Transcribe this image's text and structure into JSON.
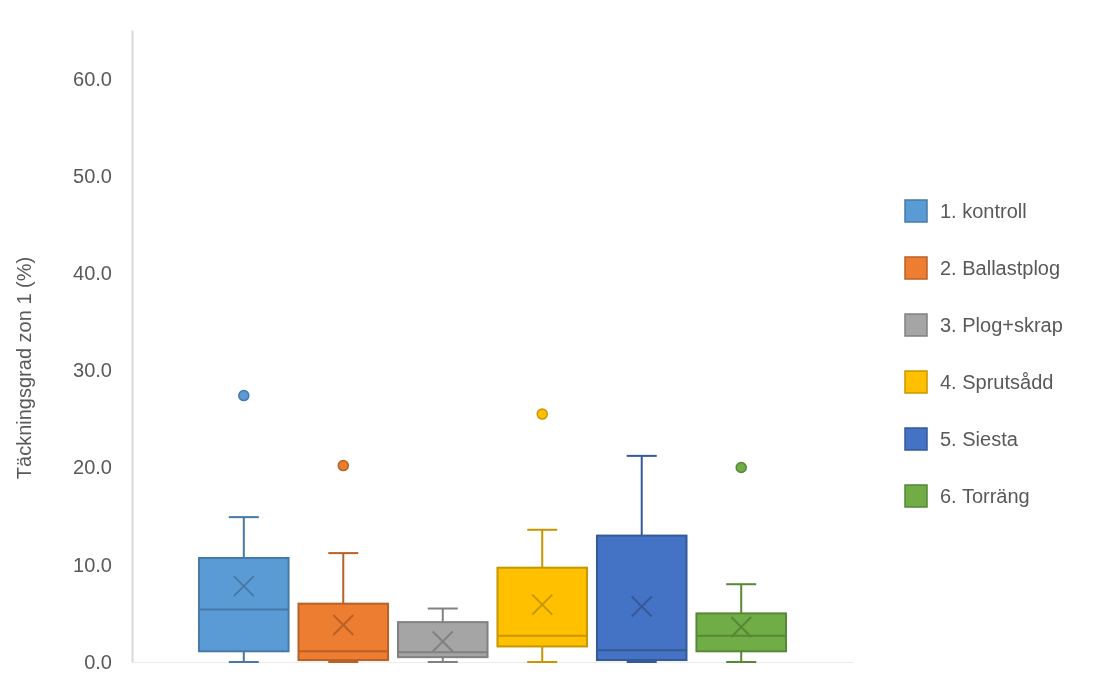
{
  "chart_data": {
    "type": "box",
    "ylabel": "Täckningsgrad zon 1 (%)",
    "categories": [
      null
    ],
    "series": [
      {
        "name": "1. kontroll",
        "color": "#5b9bd5",
        "boxes": [
          {
            "low": 0,
            "q1": 1.1,
            "median": 5.4,
            "q3": 10.7,
            "high": 14.9,
            "mean": 7.8,
            "outliers": [
              27.4
            ]
          }
        ]
      },
      {
        "name": "2. Ballastplog",
        "color": "#ed7d31",
        "boxes": [
          {
            "low": 0,
            "q1": 0.2,
            "median": 1.1,
            "q3": 6.0,
            "high": 11.2,
            "mean": 3.8,
            "outliers": [
              20.2
            ]
          }
        ]
      },
      {
        "name": "3. Plog+skrap",
        "color": "#a5a5a5",
        "boxes": [
          {
            "low": 0,
            "q1": 0.5,
            "median": 1.0,
            "q3": 4.1,
            "high": 5.5,
            "mean": 2.1
          }
        ]
      },
      {
        "name": "4. Sprutsådd",
        "color": "#ffc000",
        "boxes": [
          {
            "low": 0,
            "q1": 1.6,
            "median": 2.7,
            "q3": 9.7,
            "high": 13.6,
            "mean": 5.9,
            "outliers": [
              25.5
            ]
          }
        ]
      },
      {
        "name": "5. Siesta",
        "color": "#4472c4",
        "boxes": [
          {
            "low": 0,
            "q1": 0.2,
            "median": 1.2,
            "q3": 13.0,
            "high": 21.2,
            "mean": 5.7
          }
        ]
      },
      {
        "name": "6. Torräng",
        "color": "#70ad47",
        "boxes": [
          {
            "low": 0,
            "q1": 1.1,
            "median": 2.7,
            "q3": 5.0,
            "high": 8.0,
            "mean": 3.6,
            "outliers": [
              20.0
            ]
          }
        ]
      }
    ],
    "ylim": [
      0,
      65
    ],
    "yticks": [
      {
        "value": 0,
        "label": "0.0"
      },
      {
        "value": 10,
        "label": "10.0"
      },
      {
        "value": 20,
        "label": "20.0"
      },
      {
        "value": 30,
        "label": "30.0"
      },
      {
        "value": 40,
        "label": "40.0"
      },
      {
        "value": 50,
        "label": "50.0"
      },
      {
        "value": 60,
        "label": "60.0"
      }
    ],
    "legend": "right"
  }
}
